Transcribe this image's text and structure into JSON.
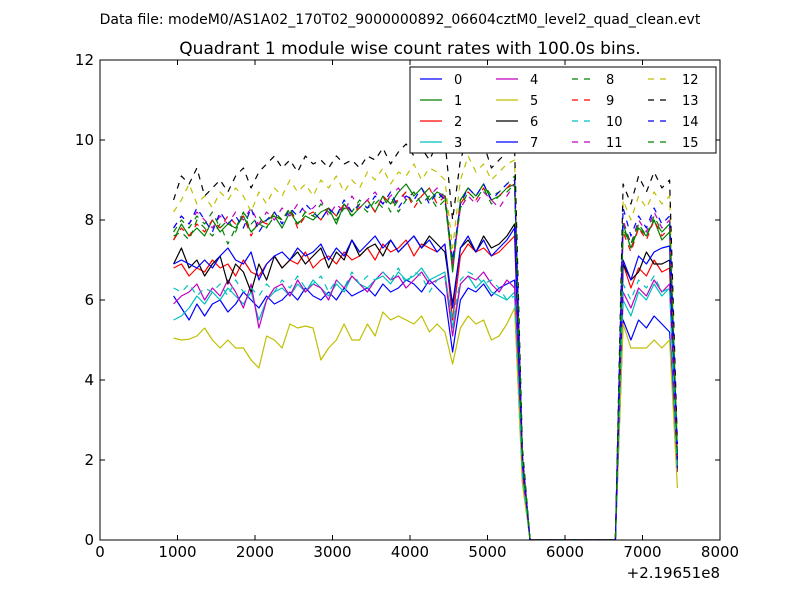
{
  "suptitle": "Data file: modeM0/AS1A02_170T02_9000000892_06604cztM0_level2_quad_clean.evt",
  "chart_data": {
    "type": "line",
    "title": "Quadrant 1 module wise count rates with 100.0s bins.",
    "xlabel": "",
    "ylabel": "",
    "x_offset_label": "+2.19651e8",
    "xlim": [
      0,
      8000
    ],
    "ylim": [
      0,
      12
    ],
    "xticks": [
      "0",
      "1000",
      "2000",
      "3000",
      "4000",
      "5000",
      "6000",
      "7000",
      "8000"
    ],
    "yticks": [
      "0",
      "2",
      "4",
      "6",
      "8",
      "10",
      "12"
    ],
    "grid": false,
    "legend_position": "top-right",
    "x_segment1": [
      950,
      1050,
      1150,
      1250,
      1350,
      1450,
      1550,
      1650,
      1750,
      1850,
      1950,
      2050,
      2150,
      2250,
      2350,
      2450,
      2550,
      2650,
      2750,
      2850,
      2950,
      3050,
      3150,
      3250,
      3350,
      3450,
      3550,
      3650,
      3750,
      3850,
      3950,
      4050,
      4150,
      4250,
      4350,
      4450,
      4550,
      4650,
      4750,
      4850,
      4950,
      5050,
      5150,
      5250,
      5350,
      5450,
      5550
    ],
    "x_segment2": [
      6650,
      6750,
      6850,
      6950,
      7050,
      7150,
      7250,
      7350,
      7450
    ],
    "series": [
      {
        "name": "0",
        "color": "#0000ff",
        "dash": "solid",
        "segment1": [
          6.1,
          5.8,
          5.5,
          5.9,
          5.6,
          5.9,
          6.0,
          5.7,
          5.9,
          6.2,
          6.0,
          5.8,
          6.1,
          5.9,
          6.0,
          6.2,
          6.0,
          6.3,
          6.1,
          6.0,
          6.2,
          6.0,
          6.3,
          6.1,
          6.2,
          6.3,
          6.1,
          6.4,
          6.2,
          6.3,
          6.5,
          6.4,
          6.2,
          6.5,
          6.3,
          6.1,
          4.7,
          6.0,
          6.3,
          6.2,
          6.4,
          6.1,
          6.3,
          6.4,
          6.5,
          1.5,
          0.0
        ],
        "segment2": [
          0.0,
          5.5,
          5.0,
          5.5,
          5.3,
          5.6,
          5.4,
          5.2,
          1.8
        ]
      },
      {
        "name": "1",
        "color": "#008000",
        "dash": "solid",
        "segment1": [
          7.5,
          7.9,
          7.6,
          7.8,
          7.6,
          8.0,
          7.7,
          7.9,
          7.8,
          8.1,
          7.7,
          7.9,
          8.0,
          8.1,
          7.8,
          8.2,
          7.9,
          8.1,
          8.0,
          8.2,
          8.3,
          7.9,
          8.4,
          8.1,
          8.3,
          8.5,
          8.2,
          8.6,
          8.4,
          8.7,
          8.9,
          8.6,
          8.8,
          8.5,
          8.7,
          8.6,
          6.7,
          8.5,
          8.8,
          8.6,
          8.9,
          8.5,
          8.6,
          8.8,
          8.9,
          2.0,
          0.0
        ],
        "segment2": [
          0.0,
          7.9,
          7.3,
          7.8,
          7.6,
          8.0,
          7.5,
          7.7,
          2.1
        ]
      },
      {
        "name": "2",
        "color": "#ff0000",
        "dash": "solid",
        "segment1": [
          6.8,
          6.9,
          6.6,
          6.8,
          6.7,
          7.0,
          6.8,
          6.9,
          6.6,
          7.0,
          6.7,
          6.6,
          6.9,
          7.1,
          6.8,
          7.0,
          6.9,
          7.2,
          6.8,
          7.0,
          7.1,
          6.9,
          7.2,
          7.0,
          7.1,
          7.3,
          7.0,
          7.4,
          7.2,
          7.3,
          7.5,
          7.1,
          7.4,
          7.3,
          7.2,
          7.4,
          5.5,
          7.1,
          7.4,
          7.2,
          7.3,
          7.1,
          7.2,
          7.4,
          7.6,
          1.8,
          0.0
        ],
        "segment2": [
          0.0,
          6.9,
          6.3,
          6.8,
          6.6,
          7.0,
          6.7,
          6.8,
          1.9
        ]
      },
      {
        "name": "3",
        "color": "#00bfbf",
        "dash": "solid",
        "segment1": [
          5.5,
          5.6,
          5.8,
          6.1,
          5.9,
          6.2,
          6.0,
          6.3,
          6.1,
          5.9,
          6.2,
          5.5,
          6.0,
          6.2,
          6.3,
          6.1,
          6.4,
          6.2,
          6.5,
          6.3,
          6.1,
          6.4,
          6.2,
          6.6,
          6.4,
          6.3,
          6.5,
          6.6,
          6.4,
          6.7,
          6.5,
          6.6,
          6.8,
          6.5,
          6.6,
          6.7,
          5.3,
          6.4,
          6.6,
          6.3,
          6.5,
          6.2,
          6.1,
          6.0,
          6.2,
          1.6,
          0.0
        ],
        "segment2": [
          0.0,
          6.0,
          5.6,
          6.2,
          6.0,
          6.4,
          6.1,
          6.3,
          1.7
        ]
      },
      {
        "name": "4",
        "color": "#bf00bf",
        "dash": "solid",
        "segment1": [
          5.9,
          6.1,
          6.2,
          6.4,
          6.0,
          6.3,
          6.1,
          6.5,
          6.2,
          5.8,
          6.4,
          5.3,
          6.0,
          6.3,
          6.4,
          6.1,
          6.5,
          6.2,
          6.4,
          6.3,
          6.0,
          6.5,
          6.3,
          6.6,
          6.4,
          6.2,
          6.5,
          6.7,
          6.5,
          6.6,
          6.3,
          6.5,
          6.7,
          6.4,
          6.5,
          6.6,
          5.1,
          6.4,
          6.6,
          6.5,
          6.7,
          6.4,
          6.2,
          6.5,
          6.3,
          1.6,
          0.0
        ],
        "segment2": [
          0.0,
          6.2,
          5.8,
          6.3,
          6.1,
          6.5,
          6.2,
          6.4,
          1.7
        ]
      },
      {
        "name": "5",
        "color": "#bfbf00",
        "dash": "solid",
        "segment1": [
          5.05,
          5.0,
          5.02,
          5.1,
          5.3,
          5.0,
          4.8,
          5.0,
          4.8,
          4.8,
          4.5,
          4.3,
          5.1,
          5.0,
          4.8,
          5.4,
          5.3,
          5.35,
          5.3,
          4.5,
          4.8,
          5.0,
          5.4,
          5.0,
          5.0,
          5.4,
          5.1,
          5.7,
          5.5,
          5.6,
          5.5,
          5.4,
          5.6,
          5.2,
          5.4,
          5.2,
          4.4,
          5.3,
          5.6,
          5.4,
          5.5,
          5.0,
          5.1,
          5.4,
          5.8,
          1.4,
          0.0
        ],
        "segment2": [
          0.0,
          5.4,
          4.8,
          4.8,
          4.8,
          5.0,
          4.8,
          5.0,
          1.3
        ]
      },
      {
        "name": "6",
        "color": "#000000",
        "dash": "solid",
        "segment1": [
          6.9,
          7.3,
          6.8,
          7.0,
          6.6,
          6.9,
          7.1,
          6.4,
          6.9,
          6.7,
          6.2,
          6.9,
          6.5,
          7.1,
          6.8,
          7.0,
          7.2,
          6.9,
          7.1,
          7.3,
          6.8,
          7.2,
          7.0,
          7.5,
          7.1,
          7.3,
          7.4,
          7.1,
          7.5,
          7.2,
          7.4,
          7.6,
          7.3,
          7.6,
          7.4,
          7.2,
          5.9,
          7.3,
          7.5,
          7.2,
          7.6,
          7.3,
          7.4,
          7.6,
          7.9,
          1.9,
          0.0
        ],
        "segment2": [
          0.0,
          6.9,
          6.5,
          6.7,
          7.2,
          6.9,
          6.9,
          7.0,
          2.0
        ]
      },
      {
        "name": "7",
        "color": "#0000ff",
        "dash": "solid",
        "segment1": [
          6.9,
          7.0,
          6.9,
          6.8,
          7.0,
          6.8,
          7.1,
          7.3,
          7.0,
          6.9,
          7.2,
          6.5,
          6.9,
          7.1,
          7.2,
          7.0,
          7.3,
          7.1,
          7.2,
          7.4,
          7.0,
          7.3,
          7.1,
          7.5,
          7.2,
          7.4,
          7.6,
          7.3,
          7.5,
          7.2,
          7.4,
          7.6,
          7.3,
          7.5,
          7.2,
          7.4,
          5.8,
          7.3,
          7.6,
          7.2,
          7.5,
          7.1,
          7.3,
          7.5,
          7.8,
          1.9,
          0.0
        ],
        "segment2": [
          0.0,
          7.0,
          6.5,
          7.1,
          6.9,
          7.2,
          7.3,
          7.35,
          1.8
        ]
      },
      {
        "name": "8",
        "color": "#008000",
        "dash": "dashed",
        "segment1": [
          7.6,
          7.7,
          7.5,
          8.0,
          7.8,
          7.6,
          7.9,
          7.4,
          7.8,
          8.2,
          7.7,
          7.9,
          7.8,
          8.1,
          8.0,
          8.3,
          7.9,
          8.2,
          8.1,
          8.0,
          8.3,
          8.1,
          8.4,
          8.2,
          8.5,
          8.3,
          8.4,
          8.6,
          8.2,
          8.5,
          8.7,
          8.4,
          8.6,
          8.8,
          8.5,
          8.7,
          6.9,
          8.5,
          8.8,
          8.6,
          8.9,
          8.6,
          8.7,
          8.9,
          9.1,
          2.1,
          0.0
        ],
        "segment2": [
          0.0,
          7.8,
          7.3,
          7.9,
          7.6,
          8.1,
          7.7,
          7.9,
          2.2
        ]
      },
      {
        "name": "9",
        "color": "#ff0000",
        "dash": "dashed",
        "segment1": [
          7.5,
          7.8,
          7.6,
          7.9,
          7.7,
          8.0,
          7.8,
          8.1,
          7.9,
          8.1,
          7.6,
          8.0,
          7.9,
          8.2,
          8.0,
          8.3,
          7.8,
          8.1,
          8.2,
          8.0,
          8.3,
          8.1,
          8.4,
          8.2,
          8.3,
          8.5,
          8.2,
          8.6,
          8.4,
          8.5,
          8.7,
          8.3,
          8.6,
          8.8,
          8.4,
          8.6,
          6.8,
          8.4,
          8.7,
          8.5,
          8.8,
          8.5,
          8.6,
          8.8,
          9.0,
          2.0,
          0.0
        ],
        "segment2": [
          0.0,
          7.7,
          7.2,
          7.8,
          7.5,
          8.0,
          7.6,
          7.8,
          2.1
        ]
      },
      {
        "name": "10",
        "color": "#00bfbf",
        "dash": "dashed",
        "segment1": [
          6.3,
          6.2,
          6.4,
          6.1,
          6.3,
          6.2,
          6.4,
          6.1,
          6.5,
          6.2,
          6.3,
          6.1,
          6.4,
          6.2,
          6.5,
          6.3,
          6.6,
          6.3,
          6.4,
          6.6,
          6.2,
          6.5,
          6.3,
          6.7,
          6.4,
          6.6,
          6.5,
          6.7,
          6.5,
          6.8,
          6.4,
          6.7,
          6.6,
          6.2,
          6.5,
          6.6,
          5.5,
          6.5,
          6.7,
          6.6,
          6.4,
          6.5,
          6.3,
          6.0,
          6.1,
          1.6,
          0.0
        ],
        "segment2": [
          0.0,
          6.4,
          6.0,
          6.5,
          6.3,
          6.6,
          6.2,
          6.3,
          1.7
        ]
      },
      {
        "name": "11",
        "color": "#bf00bf",
        "dash": "dashed",
        "segment1": [
          7.8,
          8.1,
          7.9,
          8.2,
          8.0,
          7.8,
          8.1,
          7.9,
          8.2,
          8.0,
          8.3,
          7.9,
          8.2,
          8.0,
          8.3,
          8.1,
          8.4,
          8.2,
          8.3,
          8.5,
          8.1,
          8.4,
          8.2,
          8.6,
          8.3,
          8.5,
          8.7,
          8.4,
          8.6,
          8.8,
          8.5,
          8.7,
          8.4,
          8.6,
          8.8,
          8.5,
          6.9,
          8.3,
          8.6,
          8.4,
          8.7,
          8.5,
          8.3,
          8.6,
          8.9,
          2.1,
          0.0
        ],
        "segment2": [
          0.0,
          8.0,
          7.4,
          8.0,
          7.7,
          8.2,
          7.8,
          8.0,
          2.2
        ]
      },
      {
        "name": "12",
        "color": "#bfbf00",
        "dash": "dashed",
        "segment1": [
          8.2,
          8.5,
          8.9,
          8.4,
          8.6,
          8.3,
          8.7,
          8.5,
          8.8,
          8.6,
          8.2,
          8.7,
          8.4,
          8.8,
          8.6,
          9.0,
          8.7,
          8.9,
          8.6,
          9.0,
          8.8,
          9.1,
          8.7,
          9.0,
          8.8,
          9.2,
          9.0,
          9.3,
          8.9,
          9.2,
          9.1,
          9.4,
          9.0,
          9.3,
          9.2,
          9.0,
          7.3,
          9.0,
          9.6,
          9.2,
          9.4,
          9.0,
          9.2,
          9.4,
          9.5,
          2.2,
          0.0
        ],
        "segment2": [
          0.0,
          8.5,
          8.0,
          8.6,
          8.3,
          8.7,
          8.4,
          8.6,
          2.3
        ]
      },
      {
        "name": "13",
        "color": "#000000",
        "dash": "dashed",
        "segment1": [
          8.5,
          9.1,
          8.9,
          9.3,
          8.6,
          8.8,
          9.0,
          8.7,
          9.1,
          9.3,
          8.8,
          9.2,
          9.4,
          9.6,
          9.3,
          9.5,
          9.2,
          9.6,
          9.4,
          9.5,
          9.3,
          9.6,
          9.4,
          9.5,
          9.3,
          9.6,
          9.5,
          9.8,
          9.4,
          9.7,
          9.9,
          9.6,
          9.8,
          9.5,
          9.9,
          10.0,
          8.0,
          9.5,
          10.1,
          9.7,
          9.9,
          9.3,
          9.5,
          9.7,
          9.8,
          2.3,
          0.0
        ],
        "segment2": [
          0.0,
          8.9,
          8.4,
          9.1,
          8.7,
          9.2,
          8.8,
          9.0,
          2.4
        ]
      },
      {
        "name": "14",
        "color": "#0000ff",
        "dash": "dashed",
        "segment1": [
          7.8,
          8.1,
          7.9,
          8.3,
          8.0,
          7.7,
          8.2,
          7.9,
          8.1,
          7.8,
          8.3,
          7.7,
          8.0,
          8.2,
          7.9,
          8.3,
          8.1,
          8.4,
          8.2,
          8.0,
          8.3,
          8.1,
          8.5,
          8.2,
          8.4,
          8.3,
          8.6,
          8.4,
          8.7,
          8.3,
          8.6,
          8.5,
          8.8,
          8.4,
          8.7,
          8.5,
          7.0,
          8.4,
          8.8,
          8.6,
          8.9,
          8.5,
          8.7,
          8.9,
          9.0,
          2.1,
          0.0
        ],
        "segment2": [
          0.0,
          8.3,
          7.6,
          8.1,
          7.8,
          8.3,
          7.9,
          8.1,
          2.2
        ]
      },
      {
        "name": "15",
        "color": "#008000",
        "dash": "dashed",
        "segment1": [
          7.7,
          8.0,
          7.8,
          8.1,
          7.9,
          8.2,
          7.8,
          8.0,
          7.7,
          8.2,
          7.9,
          8.1,
          7.8,
          8.2,
          8.0,
          8.3,
          7.9,
          8.2,
          8.1,
          8.4,
          8.2,
          8.0,
          8.3,
          8.1,
          8.4,
          8.2,
          8.5,
          8.3,
          8.6,
          8.2,
          8.5,
          8.7,
          8.4,
          8.6,
          8.3,
          8.5,
          6.8,
          8.3,
          8.7,
          8.5,
          8.8,
          8.4,
          8.6,
          8.7,
          8.9,
          2.1,
          0.0
        ],
        "segment2": [
          0.0,
          7.9,
          7.4,
          7.9,
          7.6,
          8.0,
          7.7,
          7.9,
          2.1
        ]
      }
    ]
  }
}
